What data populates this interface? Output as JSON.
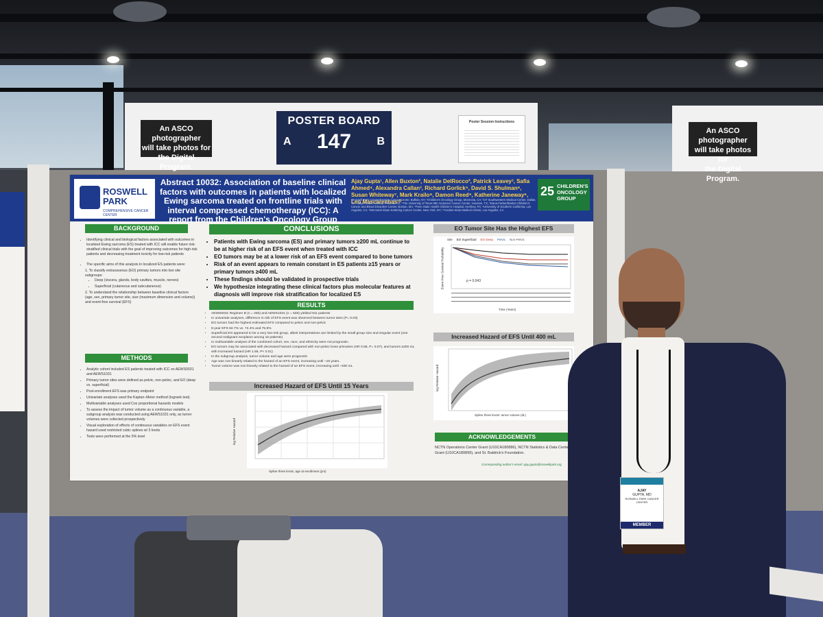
{
  "booth": {
    "poster_board_label": "POSTER BOARD",
    "side_a": "A",
    "board_number": "147",
    "side_b": "B",
    "photo_sign": [
      "An ASCO photographer",
      "will take photos for",
      "the Digital Program."
    ],
    "instructions_title": "Poster Session Instructions"
  },
  "poster": {
    "logo": {
      "name": "ROSWELL",
      "name2": "PARK",
      "tagline": "COMPREHENSIVE CANCER CENTER"
    },
    "title": "Abstract 10032: Association of baseline clinical factors with outcomes in patients with localized Ewing sarcoma treated on frontline trials with interval compressed chemotherapy (ICC): A report from the Children's Oncology Group",
    "authors": "Ajay Gupta¹, Allen Buxton², Natalie DelRocco², Patrick Leavey³, Safia Ahmed⁴, Alexandra Callan³, Richard Gorlick⁵, David S. Shulman⁶, Susan Whiteway⁷, Mark Krailo⁸, Damon Reed⁹, Katherine Janeway⁶, Leo Mascarenhas¹⁰",
    "affiliations": "¹Roswell Park Comprehensive Cancer Center, Buffalo, NY; ²Children's Oncology Group, Monrovia, CA; ³UT Southwestern Medical Center, Dallas, TX; ⁴Mayo Clinic Arizona, Phoenix, AZ; ⁵The University of Texas MD Anderson Cancer Center, Houston, TX; ⁶Dana-Farber/Boston Children's Cancer and Blood Disorders Center, Boston, MA; ⁷Penn State Health Children's Hospital, Hershey, PA; ⁸University of Southern California, Los Angeles, CA; ⁹Memorial Sloan Kettering Cancer Center, New York, NY; ¹⁰Cedars-Sinai Medical Center, Los Angeles, CA",
    "cog": {
      "number": "25",
      "text": "CHILDREN'S ONCOLOGY GROUP"
    },
    "background": {
      "heading": "BACKGROUND",
      "p1": "Identifying clinical and biological factors associated with outcomes in localized Ewing sarcoma (ES) treated with ICC will enable future risk-stratified clinical trials with the goal of improving outcomes for high-risk patients and decreasing treatment toxicity for low-risk patients",
      "p2": "The specific aims of this analysis in localized ES patients were:",
      "a1": "1.  To classify extraosseous (EO) primary tumors into two site subgroups:",
      "a1a": "Deep (viscera, glands, body cavities, muscle, nerves)",
      "a1b": "Superficial (cutaneous and subcutaneous)",
      "a2": "2.  To understand the relationship between baseline clinical factors (age, sex, primary tumor site, size (maximum dimension and volume)) and event-free survival (EFS)"
    },
    "methods": {
      "heading": "METHODS",
      "items": [
        "Analytic cohort included ES patients treated with ICC on AEWS0031 and AEWS1031",
        "Primary tumor sites were defined as pelvic, non-pelvic, and EO (deep vs. superficial)",
        "Post-enrollment EFS was primary endpoint",
        "Univariate analyses used the Kaplan–Meier method (logrank test).",
        "Multivariable analyses used Cox proportional hazards models",
        "To assess the impact of tumor volume as a continuous variable, a subgroup analysis was conducted using AEWS1031 only, as tumor volumes were collected prospectively",
        "Visual exploration of effects of continuous variables on EFS event hazard used restricted cubic splines w/ 3 knots",
        "Tests were performed at the 5% level"
      ]
    },
    "conclusions": {
      "heading": "CONCLUSIONS",
      "items": [
        "Patients with Ewing sarcoma (ES) and primary tumors ≥200 mL continue to be at higher risk of an EFS event when treated with ICC",
        "EO tumors may be at a lower risk of an EFS event compared to bone tumors",
        "Risk of an event appears to remain constant in ES patients ≥15 years or primary tumors ≥400 mL",
        "These findings should be validated in prospective trials",
        "We hypothesize integrating these clinical factors plus molecular features at diagnosis will improve risk stratification for localized ES"
      ]
    },
    "results": {
      "heading": "RESULTS",
      "items": [
        "AEWS0031 Regimen B (n = 283) and AEWS1031 (n = 628) yielded 911 patients",
        "In univariate analyses, difference in risk of EFS event was observed between tumor sites (P= 0.03)",
        "EO tumors had the highest estimated EFS compared to pelvic and non-pelvic",
        "5-year EFS 84.7% vs. 72.4% and 75.9%",
        "Superficial EO appeared to be a very low-risk group, albeit interpretations are limited by the small group size and singular event (one second malignant neoplasm among 15 patients)",
        "In multivariable analysis of the combined cohort, sex, race, and ethnicity were not prognostic.",
        "EO tumors may be associated with decreased hazard compared with non-pelvic bone primaries (HR 0.58, P= 0.07), and tumors ≥200 mL with increased hazard (HR 1.56, P< 0.01)",
        "In the subgroup analysis, tumor volume and age were prognostic",
        "Age was non-linearly related to the hazard of an EFS event, increasing until ~15 years.",
        "Tumor volume was non-linearly related to the hazard of an EFS event, increasing until ~400 mL"
      ]
    },
    "age_plot": {
      "heading": "Increased Hazard of EFS Until 15 Years",
      "xlabel": "Spline three knots, age at enrollment (yrs)",
      "ylabel": "log Relative Hazard"
    },
    "km_plot": {
      "heading": "EO Tumor Site Has the Highest EFS",
      "legend": [
        "Site",
        "EO Superficial",
        "EO Deep",
        "Pelvic",
        "Non-Pelvic"
      ],
      "pvalue": "p = 0.043",
      "xlabel": "Time (Years)",
      "ylabel": "Event-Free Survival Probability"
    },
    "vol_plot": {
      "heading": "Increased Hazard of EFS Until 400 mL",
      "xlabel": "Spline three knots: tumor volume (dL)",
      "ylabel": "log Relative Hazard"
    },
    "acknowledgements": {
      "heading": "ACKNOWLEDGEMENTS",
      "text": "NCTN Operations Center Grant (U10CA180886), NCTN Statistics & Data Center Grant (U10CA180899), and St. Baldrick's Foundation."
    },
    "footer": "Corresponding author's email: ajay.gupta@roswellpark.org"
  },
  "badge": {
    "name": "AJAY",
    "line2": "GUPTA, MD",
    "line3": "ROSWELL PARK CANCER CENTER",
    "role": "MEMBER"
  },
  "colors": {
    "poster_blue": "#1e3a8c",
    "section_green": "#2f8f3a",
    "board_navy": "#1d2a4f",
    "floor_blue": "#4f5a86"
  }
}
